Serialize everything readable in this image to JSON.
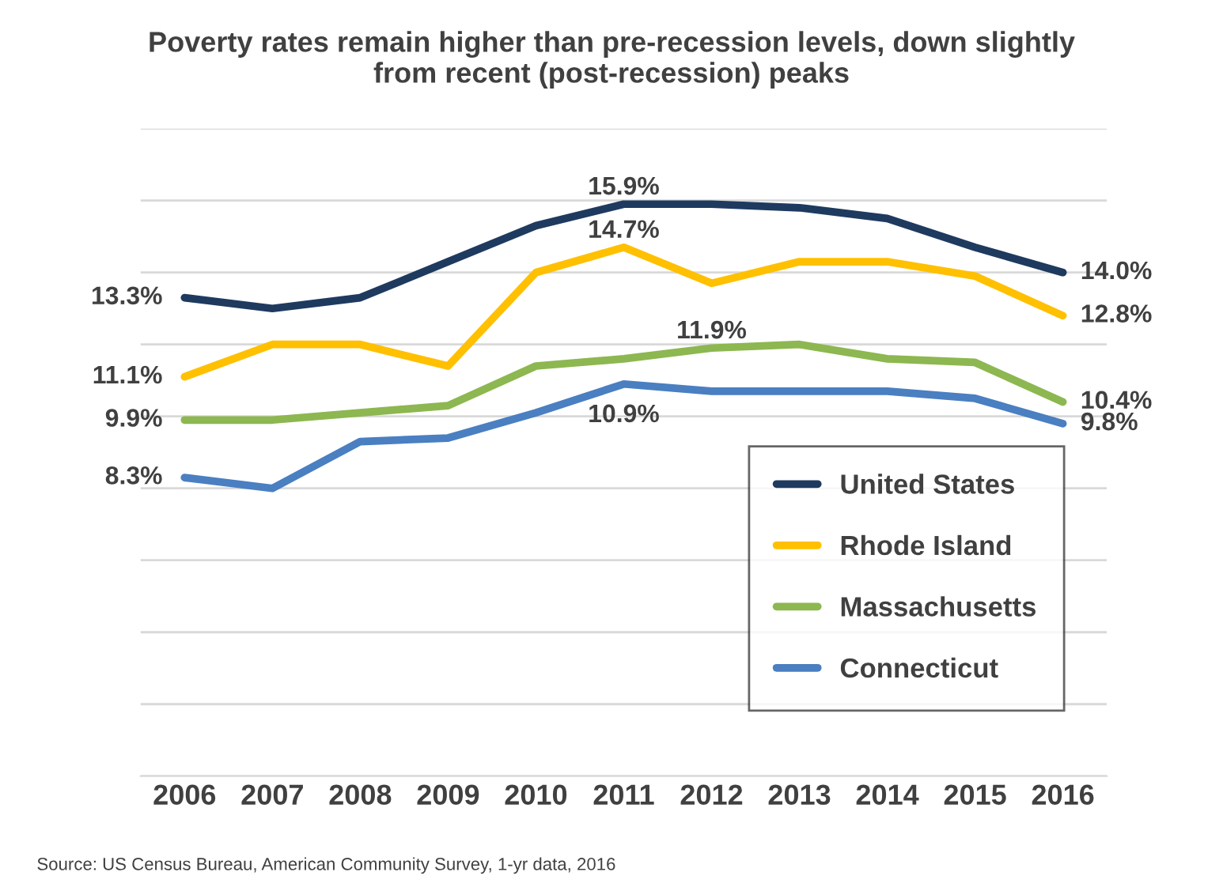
{
  "chart_data": {
    "type": "line",
    "title": "Poverty rates remain higher than pre-recession levels, down slightly\nfrom recent (post-recession) peaks",
    "categories": [
      "2006",
      "2007",
      "2008",
      "2009",
      "2010",
      "2011",
      "2012",
      "2013",
      "2014",
      "2015",
      "2016"
    ],
    "series": [
      {
        "name": "United States",
        "color": "#1f3a5f",
        "values": [
          13.3,
          13.0,
          13.3,
          14.3,
          15.3,
          15.9,
          15.9,
          15.8,
          15.5,
          14.7,
          14.0
        ],
        "value_labels": [
          "13.3%",
          null,
          null,
          null,
          null,
          "15.9%",
          null,
          null,
          null,
          null,
          "14.0%"
        ]
      },
      {
        "name": "Rhode Island",
        "color": "#ffc000",
        "values": [
          11.1,
          12.0,
          12.0,
          11.4,
          14.0,
          14.7,
          13.7,
          14.3,
          14.3,
          13.9,
          12.8
        ],
        "value_labels": [
          "11.1%",
          null,
          null,
          null,
          null,
          "14.7%",
          null,
          null,
          null,
          null,
          "12.8%"
        ]
      },
      {
        "name": "Massachusetts",
        "color": "#8db750",
        "values": [
          9.9,
          9.9,
          10.1,
          10.3,
          11.4,
          11.6,
          11.9,
          12.0,
          11.6,
          11.5,
          10.4
        ],
        "value_labels": [
          "9.9%",
          null,
          null,
          null,
          null,
          null,
          "11.9%",
          null,
          null,
          null,
          "10.4%"
        ]
      },
      {
        "name": "Connecticut",
        "color": "#4a7fc1",
        "values": [
          8.3,
          8.0,
          9.3,
          9.4,
          10.1,
          10.9,
          10.7,
          10.7,
          10.7,
          10.5,
          9.8
        ],
        "value_labels": [
          "8.3%",
          null,
          null,
          null,
          null,
          "10.9%",
          null,
          null,
          null,
          null,
          "9.8%"
        ]
      }
    ],
    "ylim": [
      0,
      18
    ],
    "yticks": [
      {
        "value": 0,
        "label": null
      },
      {
        "value": 2,
        "label": null
      },
      {
        "value": 4,
        "label": null
      },
      {
        "value": 6,
        "label": null
      },
      {
        "value": 8,
        "label": null
      },
      {
        "value": 10,
        "label": null
      },
      {
        "value": 12,
        "label": null
      },
      {
        "value": 14,
        "label": null
      },
      {
        "value": 16,
        "label": null
      },
      {
        "value": 18,
        "label": null
      }
    ],
    "grid": "y",
    "legend": "bottom right",
    "tick_labels": "x",
    "marker": "none",
    "line_style": "solid",
    "annotations": [
      "Source: US Census Bureau, American Community Survey, 1-yr data, 2016"
    ]
  }
}
